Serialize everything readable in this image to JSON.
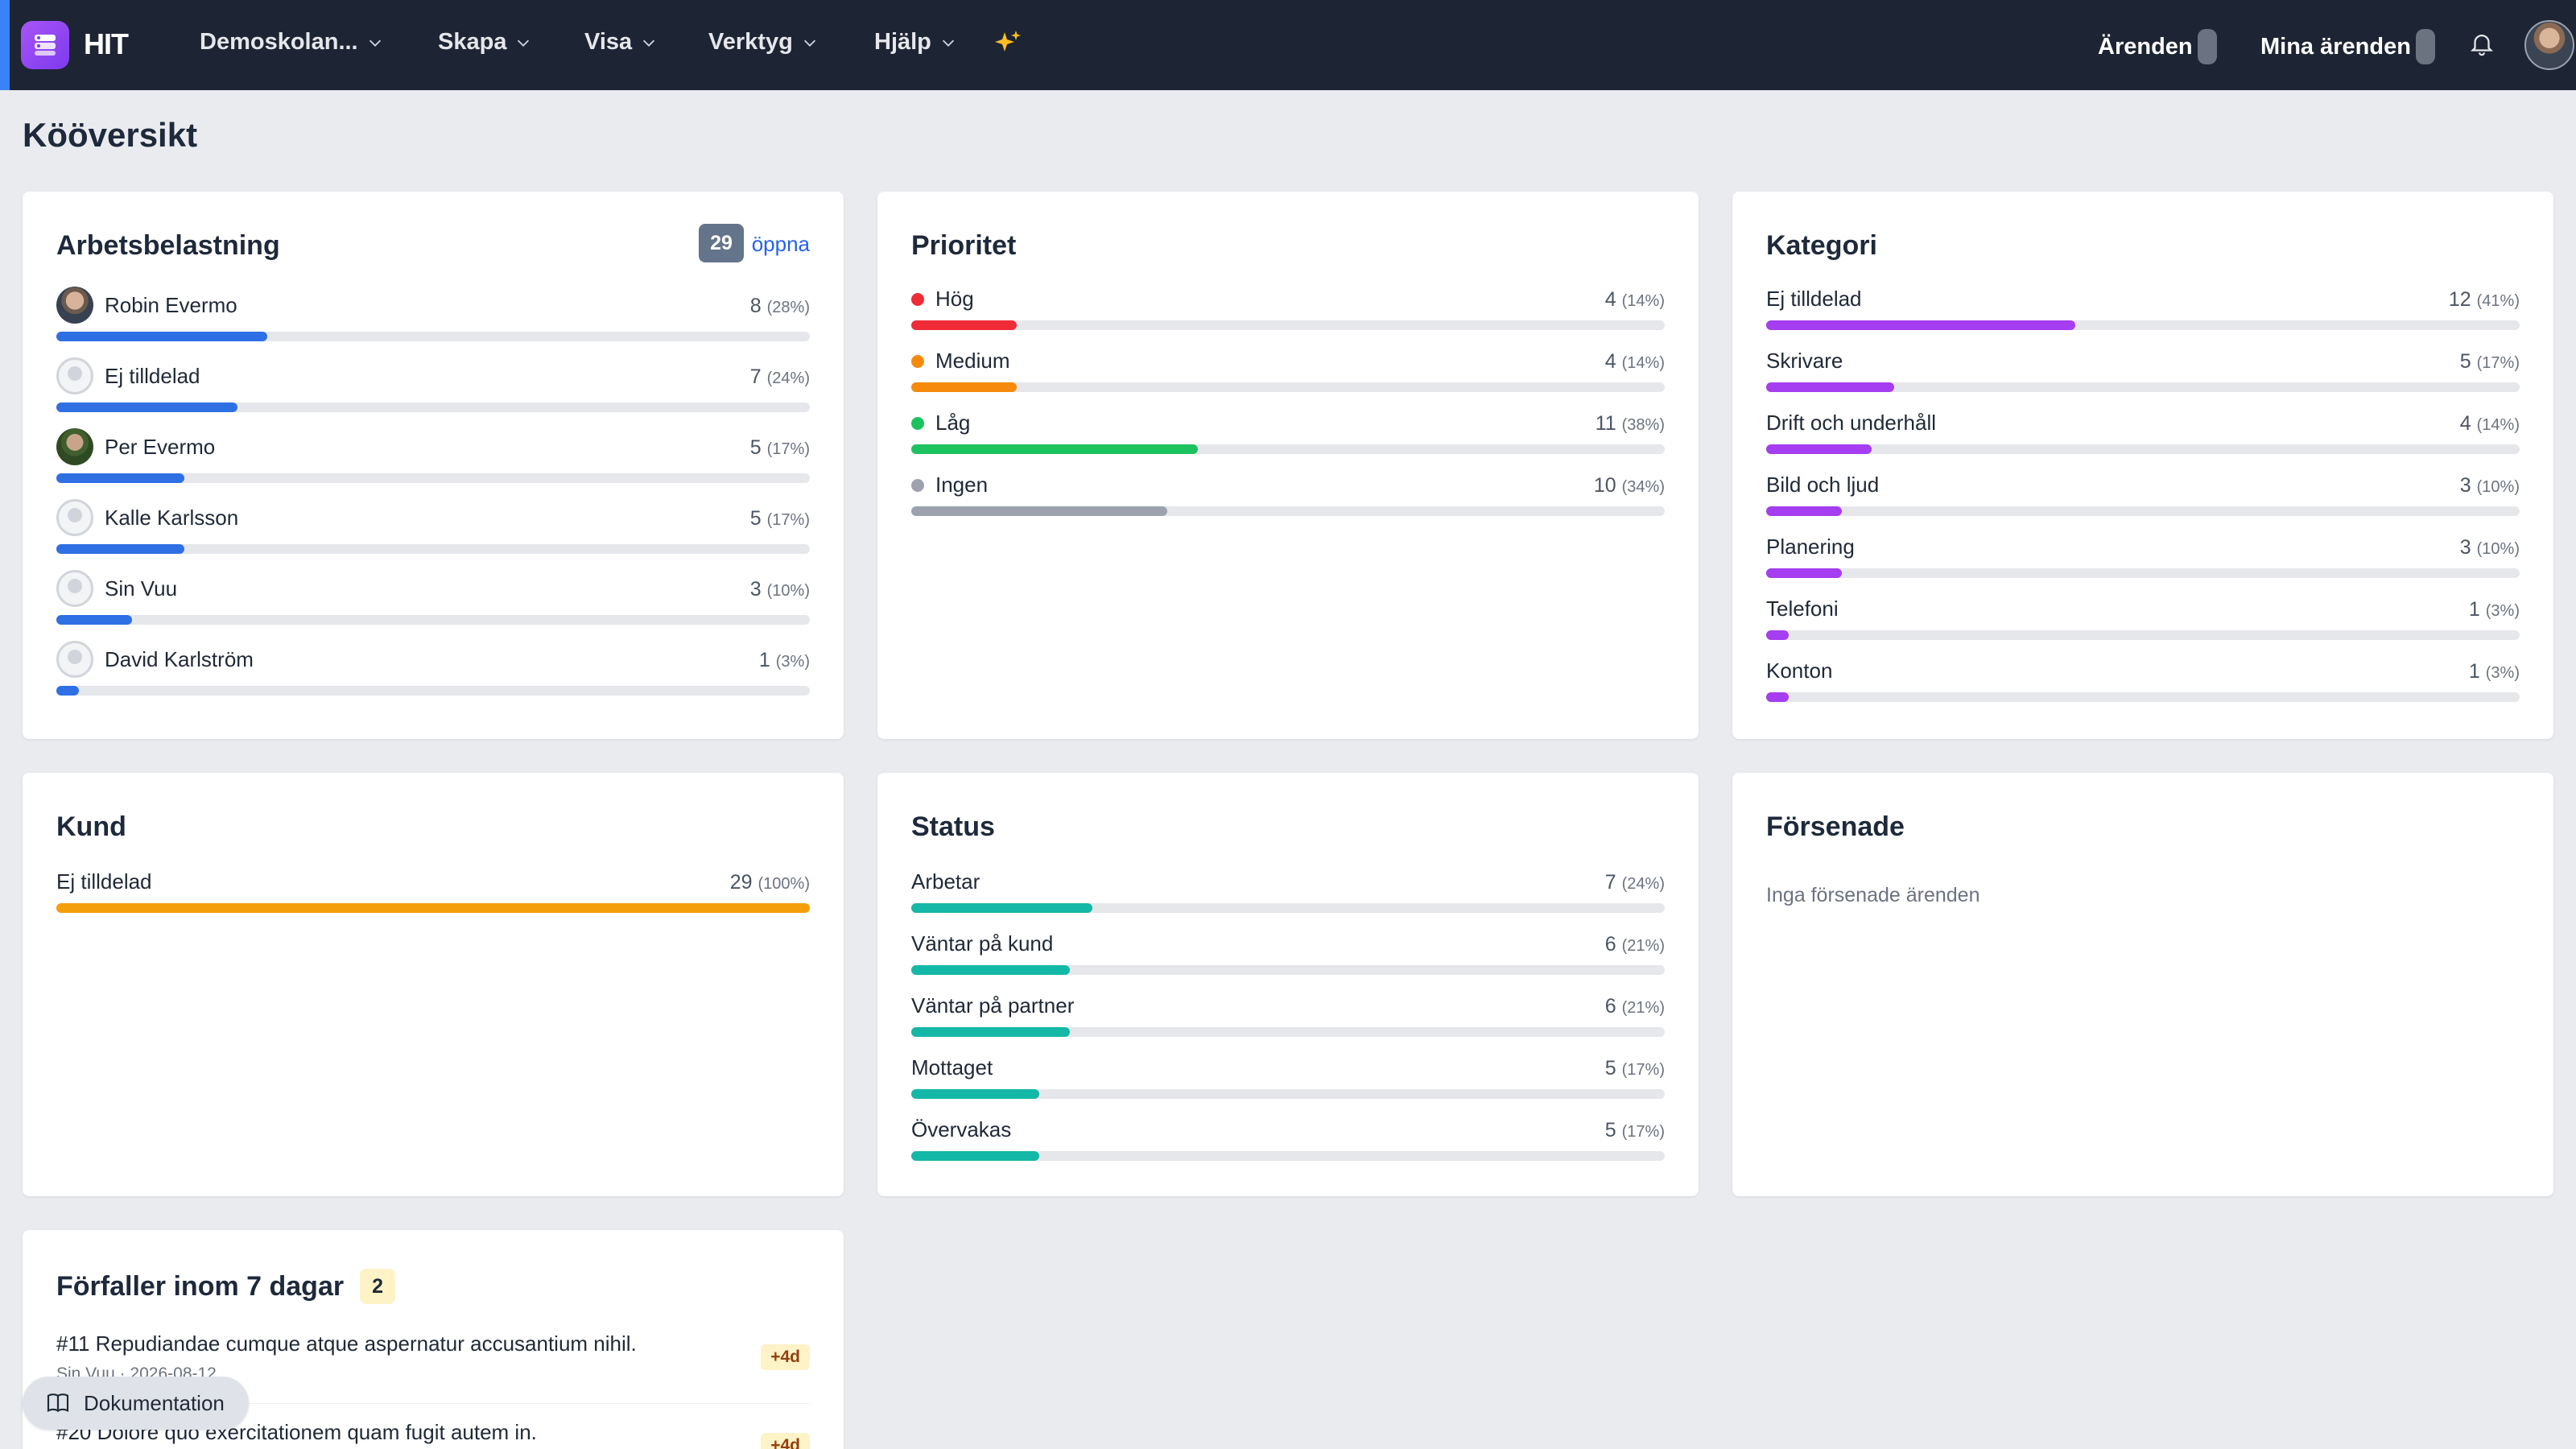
{
  "header": {
    "app_name": "HIT",
    "menu": [
      "Demoskolan...",
      "Skapa",
      "Visa",
      "Verktyg",
      "Hjälp"
    ],
    "cases_label": "Ärenden",
    "my_cases_label": "Mina ärenden"
  },
  "page_title": "Kööversikt",
  "workload": {
    "title": "Arbetsbelastning",
    "open_count": "29",
    "open_label": "öppna",
    "color": "#2f6fe4",
    "items": [
      {
        "name": "Robin Evermo",
        "count": "8",
        "pct": "(28%)",
        "fraction": 0.28
      },
      {
        "name": "Ej tilldelad",
        "count": "7",
        "pct": "(24%)",
        "fraction": 0.24
      },
      {
        "name": "Per Evermo",
        "count": "5",
        "pct": "(17%)",
        "fraction": 0.17
      },
      {
        "name": "Kalle Karlsson",
        "count": "5",
        "pct": "(17%)",
        "fraction": 0.17
      },
      {
        "name": "Sin Vuu",
        "count": "3",
        "pct": "(10%)",
        "fraction": 0.1
      },
      {
        "name": "David Karlström",
        "count": "1",
        "pct": "(3%)",
        "fraction": 0.03
      }
    ]
  },
  "priority": {
    "title": "Prioritet",
    "items": [
      {
        "name": "Hög",
        "count": "4",
        "pct": "(14%)",
        "fraction": 0.14,
        "color": "#ef2b38"
      },
      {
        "name": "Medium",
        "count": "4",
        "pct": "(14%)",
        "fraction": 0.14,
        "color": "#f58a0b"
      },
      {
        "name": "Låg",
        "count": "11",
        "pct": "(38%)",
        "fraction": 0.38,
        "color": "#1cc25e"
      },
      {
        "name": "Ingen",
        "count": "10",
        "pct": "(34%)",
        "fraction": 0.34,
        "color": "#9ca3af"
      }
    ]
  },
  "category": {
    "title": "Kategori",
    "color": "#a53df0",
    "items": [
      {
        "name": "Ej tilldelad",
        "count": "12",
        "pct": "(41%)",
        "fraction": 0.41
      },
      {
        "name": "Skrivare",
        "count": "5",
        "pct": "(17%)",
        "fraction": 0.17
      },
      {
        "name": "Drift och underhåll",
        "count": "4",
        "pct": "(14%)",
        "fraction": 0.14
      },
      {
        "name": "Bild och ljud",
        "count": "3",
        "pct": "(10%)",
        "fraction": 0.1
      },
      {
        "name": "Planering",
        "count": "3",
        "pct": "(10%)",
        "fraction": 0.1
      },
      {
        "name": "Telefoni",
        "count": "1",
        "pct": "(3%)",
        "fraction": 0.03
      },
      {
        "name": "Konton",
        "count": "1",
        "pct": "(3%)",
        "fraction": 0.03
      }
    ]
  },
  "customer": {
    "title": "Kund",
    "color": "#f59e0b",
    "items": [
      {
        "name": "Ej tilldelad",
        "count": "29",
        "pct": "(100%)",
        "fraction": 1.0
      }
    ]
  },
  "status": {
    "title": "Status",
    "color": "#14b8a6",
    "items": [
      {
        "name": "Arbetar",
        "count": "7",
        "pct": "(24%)",
        "fraction": 0.24
      },
      {
        "name": "Väntar på kund",
        "count": "6",
        "pct": "(21%)",
        "fraction": 0.21
      },
      {
        "name": "Väntar på partner",
        "count": "6",
        "pct": "(21%)",
        "fraction": 0.21
      },
      {
        "name": "Mottaget",
        "count": "5",
        "pct": "(17%)",
        "fraction": 0.17
      },
      {
        "name": "Övervakas",
        "count": "5",
        "pct": "(17%)",
        "fraction": 0.17
      }
    ]
  },
  "overdue": {
    "title": "Försenade",
    "empty_text": "Inga försenade ärenden"
  },
  "due_soon": {
    "title": "Förfaller inom 7 dagar",
    "count": "2",
    "items": [
      {
        "title": "#11 Repudiandae cumque atque aspernatur accusantium nihil.",
        "meta": "Sin Vuu · 2026-08-12",
        "tag": "+4d"
      },
      {
        "title": "#20 Dolore quo exercitationem quam fugit autem in.",
        "meta": "",
        "tag": "+4d"
      }
    ]
  },
  "docs_button": "Dokumentation"
}
